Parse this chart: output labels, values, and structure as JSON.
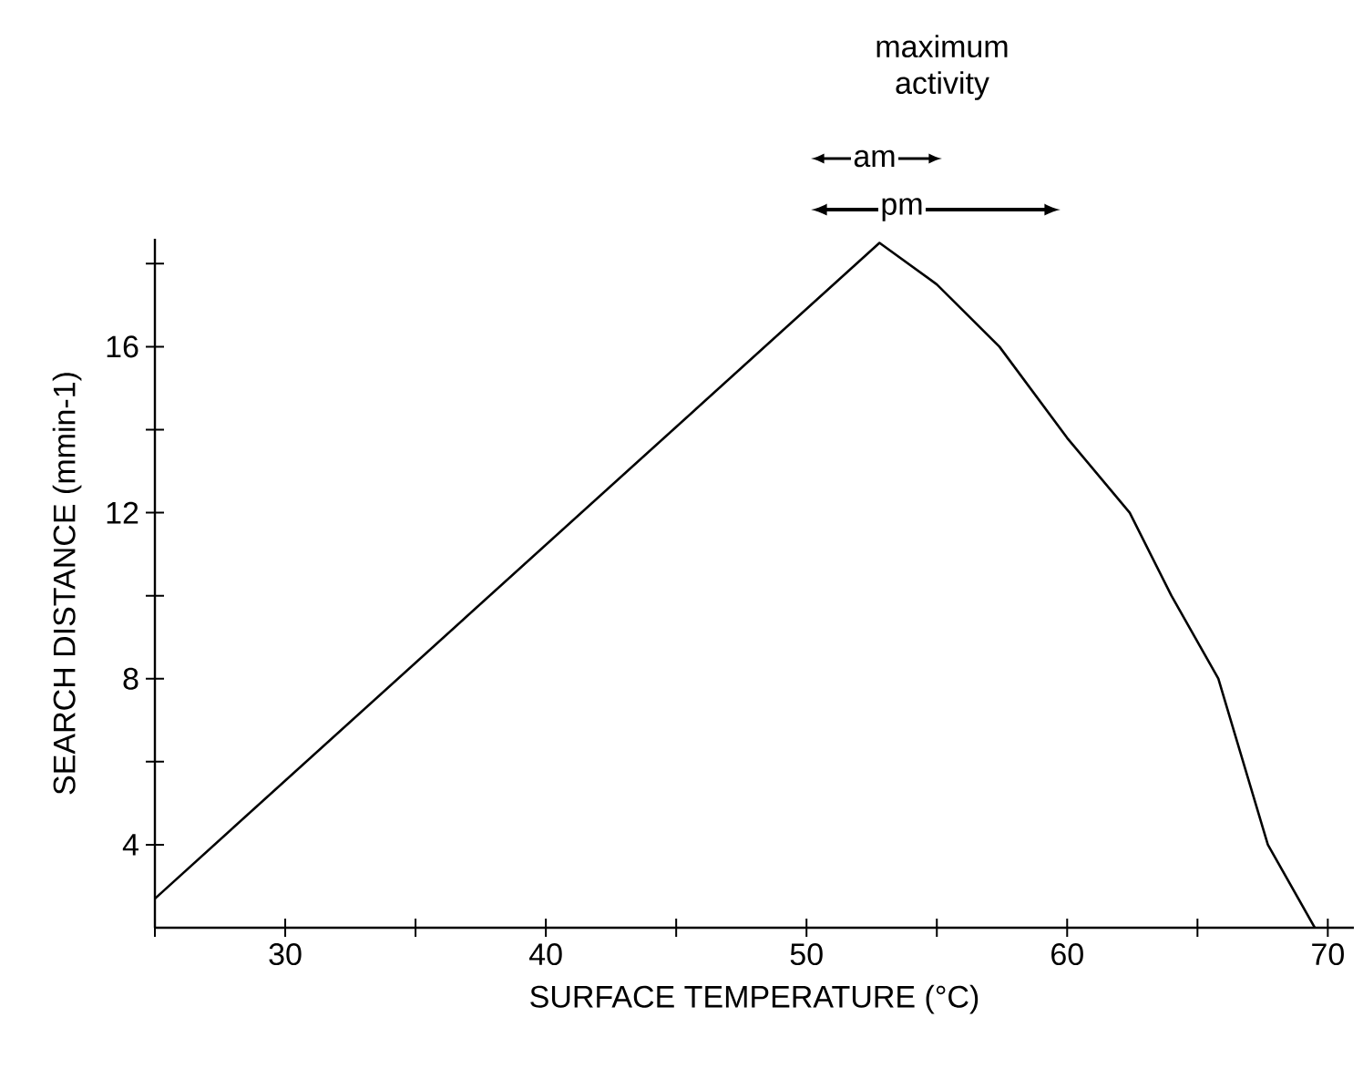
{
  "chart_data": {
    "type": "line",
    "xlabel": "SURFACE TEMPERATURE (°C)",
    "ylabel": "SEARCH DISTANCE (mmin-1)",
    "annotations": [
      "maximum activity",
      "am",
      "pm"
    ],
    "x": [
      25,
      52.8,
      55,
      57.4,
      60,
      62.4,
      64,
      65.8,
      67.7,
      69.5
    ],
    "series": [
      {
        "color": "#000000",
        "values": [
          2.7,
          18.5,
          17.5,
          16,
          13.8,
          12,
          10,
          8,
          4,
          2
        ]
      }
    ],
    "xlim": [
      25,
      71
    ],
    "ylim": [
      2,
      18.6
    ],
    "xticks": [
      {
        "value": 25,
        "label": null
      },
      30,
      {
        "value": 35,
        "label": null
      },
      40,
      {
        "value": 45,
        "label": null
      },
      50,
      {
        "value": 55,
        "label": null
      },
      60,
      {
        "value": 65,
        "label": null
      },
      70
    ],
    "yticks": [
      4,
      {
        "value": 6,
        "label": null
      },
      8,
      {
        "value": 10,
        "label": null
      },
      12,
      {
        "value": 14,
        "label": null
      },
      16,
      {
        "value": 18,
        "label": null
      }
    ],
    "marker": "none",
    "line_style": "solid"
  }
}
